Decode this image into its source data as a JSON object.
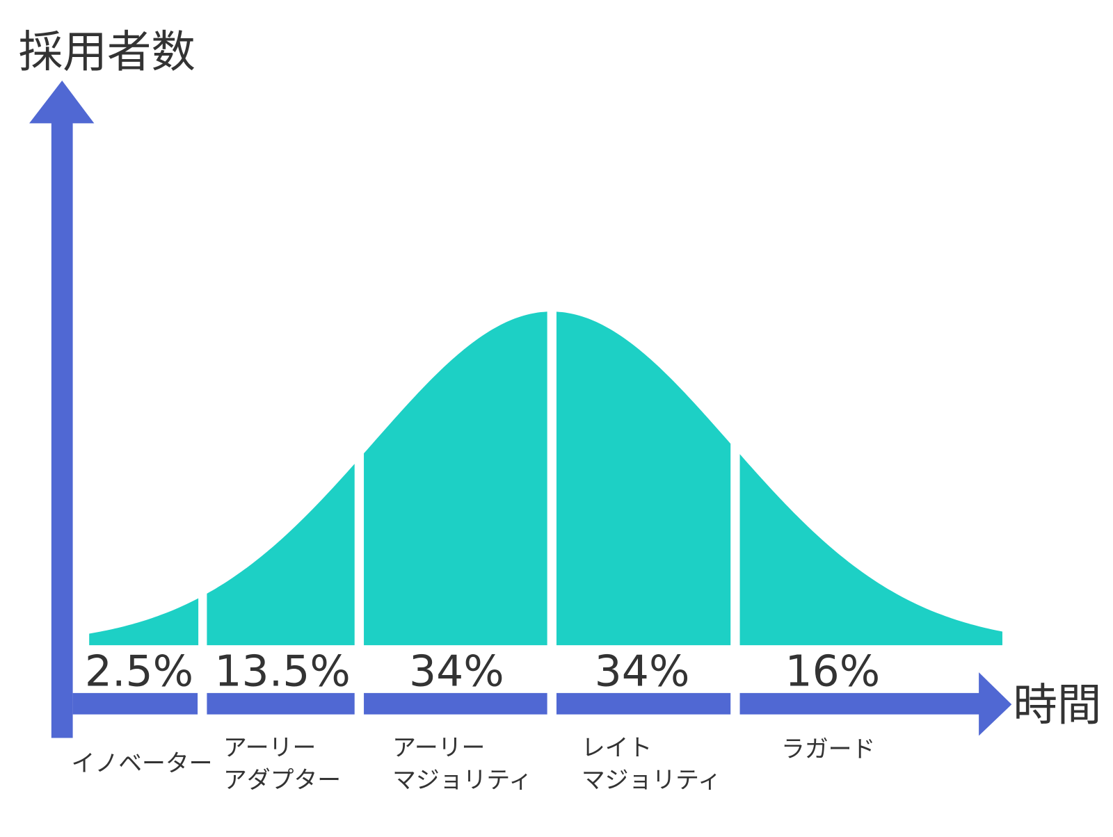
{
  "axes": {
    "y_label": "採用者数",
    "x_label": "時間"
  },
  "segments": [
    {
      "name": [
        "イノベーター"
      ],
      "share": 2.5,
      "share_label": "2.5%"
    },
    {
      "name": [
        "アーリー",
        "アダプター"
      ],
      "share": 13.5,
      "share_label": "13.5%"
    },
    {
      "name": [
        "アーリー",
        "マジョリティ"
      ],
      "share": 34,
      "share_label": "34%"
    },
    {
      "name": [
        "レイト",
        "マジョリティ"
      ],
      "share": 34,
      "share_label": "34%"
    },
    {
      "name": [
        "ラガード"
      ],
      "share": 16,
      "share_label": "16%"
    }
  ],
  "color": "#1dd0c5",
  "axis_color": "#5068d3"
}
